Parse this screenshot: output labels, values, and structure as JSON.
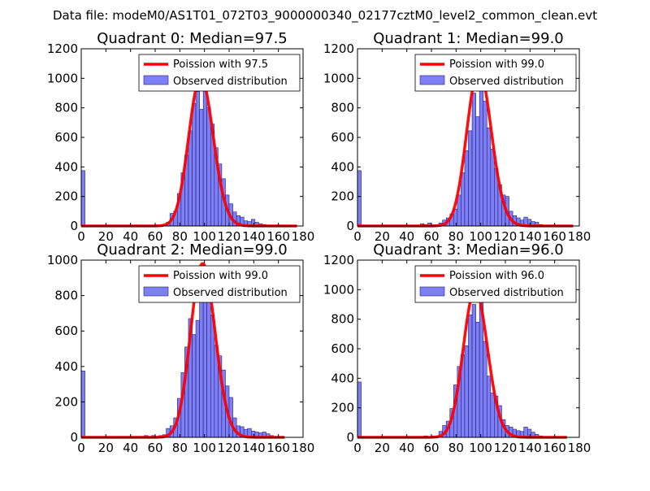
{
  "suptitle": "Data file: modeM0/AS1T01_072T03_9000000340_02177cztM0_level2_common_clean.evt",
  "colors": {
    "bar_fill": "#7f7ff5",
    "bar_edge": "#1f1f7a",
    "fit_line": "#ff0000",
    "axis": "#000000",
    "legend_border": "#000000"
  },
  "chart_data": [
    {
      "type": "bar",
      "title": "Quadrant 0: Median=97.5",
      "xlim": [
        0,
        180
      ],
      "ylim": [
        0,
        1200
      ],
      "xticks": [
        "0",
        "20",
        "40",
        "60",
        "80",
        "100",
        "120",
        "140",
        "160",
        "180"
      ],
      "yticks": [
        "0",
        "200",
        "400",
        "600",
        "800",
        "1000",
        "1200"
      ],
      "legend": {
        "placement": "top-right",
        "entries": [
          "Poission with 97.5",
          "Observed distribution"
        ]
      },
      "bin_width": 3,
      "bars": [
        [
          0,
          375
        ],
        [
          60,
          3
        ],
        [
          63,
          5
        ],
        [
          66,
          10
        ],
        [
          69,
          25
        ],
        [
          72,
          85
        ],
        [
          75,
          100
        ],
        [
          78,
          220
        ],
        [
          81,
          360
        ],
        [
          84,
          480
        ],
        [
          87,
          645
        ],
        [
          90,
          830
        ],
        [
          93,
          910
        ],
        [
          96,
          790
        ],
        [
          99,
          1000
        ],
        [
          102,
          800
        ],
        [
          105,
          690
        ],
        [
          108,
          530
        ],
        [
          111,
          420
        ],
        [
          114,
          320
        ],
        [
          117,
          210
        ],
        [
          120,
          150
        ],
        [
          123,
          95
        ],
        [
          126,
          70
        ],
        [
          129,
          60
        ],
        [
          132,
          35
        ],
        [
          135,
          30
        ],
        [
          138,
          45
        ],
        [
          141,
          25
        ],
        [
          144,
          15
        ],
        [
          147,
          10
        ],
        [
          150,
          5
        ]
      ],
      "fit": {
        "label": "Poission with 97.5",
        "mean": 97.5,
        "peak": 1010,
        "x_range": [
          0,
          175
        ]
      }
    },
    {
      "type": "bar",
      "title": "Quadrant 1: Median=99.0",
      "xlim": [
        0,
        180
      ],
      "ylim": [
        0,
        1200
      ],
      "xticks": [
        "0",
        "20",
        "40",
        "60",
        "80",
        "100",
        "120",
        "140",
        "160",
        "180"
      ],
      "yticks": [
        "0",
        "200",
        "400",
        "600",
        "800",
        "1000",
        "1200"
      ],
      "legend": {
        "placement": "top-right",
        "entries": [
          "Poission with 99.0",
          "Observed distribution"
        ]
      },
      "bin_width": 3,
      "bars": [
        [
          0,
          375
        ],
        [
          51,
          15
        ],
        [
          54,
          10
        ],
        [
          57,
          20
        ],
        [
          60,
          8
        ],
        [
          63,
          10
        ],
        [
          66,
          20
        ],
        [
          69,
          40
        ],
        [
          72,
          55
        ],
        [
          75,
          80
        ],
        [
          78,
          115
        ],
        [
          81,
          210
        ],
        [
          84,
          360
        ],
        [
          87,
          510
        ],
        [
          90,
          645
        ],
        [
          93,
          900
        ],
        [
          96,
          740
        ],
        [
          99,
          1000
        ],
        [
          102,
          845
        ],
        [
          105,
          665
        ],
        [
          108,
          520
        ],
        [
          111,
          390
        ],
        [
          114,
          280
        ],
        [
          117,
          210
        ],
        [
          120,
          200
        ],
        [
          123,
          100
        ],
        [
          126,
          70
        ],
        [
          129,
          55
        ],
        [
          132,
          40
        ],
        [
          135,
          60
        ],
        [
          138,
          45
        ],
        [
          141,
          30
        ],
        [
          144,
          25
        ],
        [
          147,
          10
        ]
      ],
      "fit": {
        "label": "Poission with 99.0",
        "mean": 99.0,
        "peak": 1060,
        "x_range": [
          0,
          175
        ]
      }
    },
    {
      "type": "bar",
      "title": "Quadrant 2: Median=99.0",
      "xlim": [
        0,
        180
      ],
      "ylim": [
        0,
        1000
      ],
      "xticks": [
        "0",
        "20",
        "40",
        "60",
        "80",
        "100",
        "120",
        "140",
        "160",
        "180"
      ],
      "yticks": [
        "0",
        "200",
        "400",
        "600",
        "800",
        "1000"
      ],
      "legend": {
        "placement": "top-right",
        "entries": [
          "Poission with 99.0",
          "Observed distribution"
        ]
      },
      "bin_width": 3,
      "bars": [
        [
          0,
          375
        ],
        [
          48,
          5
        ],
        [
          51,
          10
        ],
        [
          54,
          5
        ],
        [
          57,
          10
        ],
        [
          60,
          5
        ],
        [
          63,
          10
        ],
        [
          66,
          15
        ],
        [
          69,
          50
        ],
        [
          72,
          65
        ],
        [
          75,
          110
        ],
        [
          78,
          220
        ],
        [
          81,
          365
        ],
        [
          84,
          510
        ],
        [
          87,
          670
        ],
        [
          90,
          580
        ],
        [
          93,
          660
        ],
        [
          96,
          960
        ],
        [
          99,
          820
        ],
        [
          102,
          780
        ],
        [
          105,
          690
        ],
        [
          108,
          520
        ],
        [
          111,
          460
        ],
        [
          114,
          380
        ],
        [
          117,
          290
        ],
        [
          120,
          225
        ],
        [
          123,
          110
        ],
        [
          126,
          65
        ],
        [
          129,
          60
        ],
        [
          132,
          45
        ],
        [
          135,
          50
        ],
        [
          138,
          35
        ],
        [
          141,
          30
        ],
        [
          144,
          25
        ],
        [
          147,
          30
        ],
        [
          150,
          20
        ],
        [
          153,
          10
        ],
        [
          156,
          5
        ]
      ],
      "fit": {
        "label": "Poission with 99.0",
        "mean": 99.0,
        "peak": 980,
        "x_range": [
          0,
          165
        ]
      }
    },
    {
      "type": "bar",
      "title": "Quadrant 3: Median=96.0",
      "xlim": [
        0,
        180
      ],
      "ylim": [
        0,
        1200
      ],
      "xticks": [
        "0",
        "20",
        "40",
        "60",
        "80",
        "100",
        "120",
        "140",
        "160",
        "180"
      ],
      "yticks": [
        "0",
        "200",
        "400",
        "600",
        "800",
        "1000",
        "1200"
      ],
      "legend": {
        "placement": "top-right",
        "entries": [
          "Poission with 96.0",
          "Observed distribution"
        ]
      },
      "bin_width": 3,
      "bars": [
        [
          0,
          375
        ],
        [
          48,
          5
        ],
        [
          51,
          5
        ],
        [
          54,
          10
        ],
        [
          57,
          5
        ],
        [
          60,
          10
        ],
        [
          63,
          10
        ],
        [
          66,
          40
        ],
        [
          69,
          80
        ],
        [
          72,
          110
        ],
        [
          75,
          195
        ],
        [
          78,
          355
        ],
        [
          81,
          480
        ],
        [
          84,
          560
        ],
        [
          87,
          620
        ],
        [
          90,
          830
        ],
        [
          93,
          900
        ],
        [
          96,
          780
        ],
        [
          99,
          995
        ],
        [
          102,
          650
        ],
        [
          105,
          415
        ],
        [
          108,
          300
        ],
        [
          111,
          280
        ],
        [
          114,
          215
        ],
        [
          117,
          120
        ],
        [
          120,
          80
        ],
        [
          123,
          70
        ],
        [
          126,
          55
        ],
        [
          129,
          45
        ],
        [
          132,
          40
        ],
        [
          135,
          70
        ],
        [
          138,
          55
        ],
        [
          141,
          35
        ],
        [
          144,
          20
        ],
        [
          147,
          10
        ]
      ],
      "fit": {
        "label": "Poission with 96.0",
        "mean": 96.0,
        "peak": 1000,
        "x_range": [
          0,
          170
        ]
      }
    }
  ]
}
